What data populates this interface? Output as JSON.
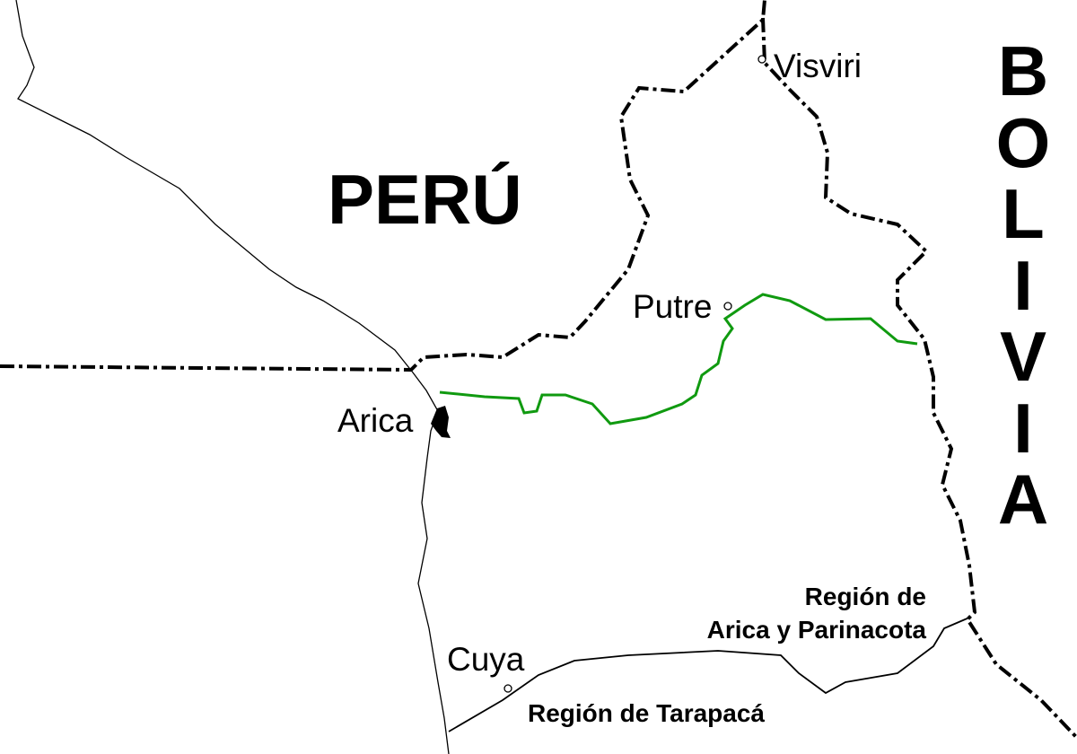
{
  "countries": {
    "peru": "PERÚ",
    "bolivia": [
      "B",
      "O",
      "L",
      "I",
      "V",
      "I",
      "A"
    ]
  },
  "towns": {
    "visviri": "Visviri",
    "putre": "Putre",
    "arica": "Arica",
    "cuya": "Cuya"
  },
  "regions": {
    "arica_line1": "Región de",
    "arica_line2": "Arica y Parinacota",
    "tarapaca": "Región de Tarapacá"
  },
  "colors": {
    "route": "#109a10",
    "border": "#000000",
    "coast": "#000000"
  }
}
